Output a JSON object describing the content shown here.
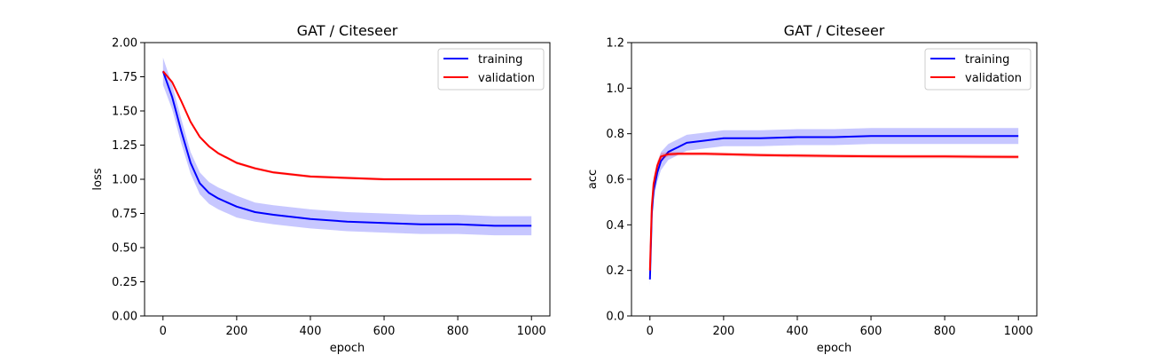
{
  "chart_data": [
    {
      "type": "line",
      "title": "GAT / Citeseer",
      "xlabel": "epoch",
      "ylabel": "loss",
      "xlim": [
        -50,
        1050
      ],
      "ylim": [
        0.0,
        2.0
      ],
      "xticks": [
        0,
        200,
        400,
        600,
        800,
        1000
      ],
      "yticks": [
        0.0,
        0.25,
        0.5,
        0.75,
        1.0,
        1.25,
        1.5,
        1.75,
        2.0
      ],
      "xtick_labels": [
        "0",
        "200",
        "400",
        "600",
        "800",
        "1000"
      ],
      "ytick_labels": [
        "0.00",
        "0.25",
        "0.50",
        "0.75",
        "1.00",
        "1.25",
        "1.50",
        "1.75",
        "2.00"
      ],
      "grid": false,
      "legend_position": "top-right",
      "series": [
        {
          "name": "training",
          "color": "#0000ff",
          "x": [
            0,
            25,
            50,
            75,
            100,
            125,
            150,
            200,
            250,
            300,
            400,
            500,
            600,
            700,
            800,
            900,
            1000
          ],
          "y": [
            1.79,
            1.6,
            1.35,
            1.12,
            0.97,
            0.9,
            0.86,
            0.8,
            0.76,
            0.74,
            0.71,
            0.69,
            0.68,
            0.67,
            0.67,
            0.66,
            0.66
          ],
          "band": [
            0.1,
            0.09,
            0.09,
            0.08,
            0.08,
            0.08,
            0.08,
            0.08,
            0.07,
            0.07,
            0.07,
            0.07,
            0.07,
            0.07,
            0.07,
            0.07,
            0.07
          ]
        },
        {
          "name": "validation",
          "color": "#ff0000",
          "x": [
            0,
            25,
            50,
            75,
            100,
            125,
            150,
            200,
            250,
            300,
            400,
            500,
            600,
            700,
            800,
            900,
            1000
          ],
          "y": [
            1.79,
            1.71,
            1.57,
            1.42,
            1.31,
            1.24,
            1.19,
            1.12,
            1.08,
            1.05,
            1.02,
            1.01,
            1.0,
            1.0,
            1.0,
            1.0,
            1.0
          ],
          "band": [
            0.01,
            0.01,
            0.01,
            0.01,
            0.01,
            0.01,
            0.01,
            0.01,
            0.01,
            0.01,
            0.01,
            0.01,
            0.01,
            0.01,
            0.01,
            0.01,
            0.01
          ]
        }
      ]
    },
    {
      "type": "line",
      "title": "GAT / Citeseer",
      "xlabel": "epoch",
      "ylabel": "acc",
      "xlim": [
        -50,
        1050
      ],
      "ylim": [
        0.0,
        1.2
      ],
      "xticks": [
        0,
        200,
        400,
        600,
        800,
        1000
      ],
      "yticks": [
        0.0,
        0.2,
        0.4,
        0.6,
        0.8,
        1.0,
        1.2
      ],
      "xtick_labels": [
        "0",
        "200",
        "400",
        "600",
        "800",
        "1000"
      ],
      "ytick_labels": [
        "0.0",
        "0.2",
        "0.4",
        "0.6",
        "0.8",
        "1.0",
        "1.2"
      ],
      "grid": false,
      "legend_position": "top-right",
      "series": [
        {
          "name": "training",
          "color": "#0000ff",
          "x": [
            0,
            5,
            10,
            20,
            30,
            50,
            75,
            100,
            150,
            200,
            300,
            400,
            500,
            600,
            700,
            800,
            900,
            1000
          ],
          "y": [
            0.16,
            0.45,
            0.55,
            0.63,
            0.68,
            0.72,
            0.74,
            0.76,
            0.77,
            0.78,
            0.78,
            0.785,
            0.785,
            0.79,
            0.79,
            0.79,
            0.79,
            0.79
          ],
          "band": [
            0.03,
            0.04,
            0.04,
            0.04,
            0.04,
            0.035,
            0.035,
            0.035,
            0.035,
            0.035,
            0.035,
            0.035,
            0.035,
            0.035,
            0.035,
            0.035,
            0.035,
            0.035
          ]
        },
        {
          "name": "validation",
          "color": "#ff0000",
          "x": [
            0,
            5,
            10,
            20,
            30,
            50,
            75,
            100,
            150,
            200,
            300,
            400,
            500,
            600,
            700,
            800,
            900,
            1000
          ],
          "y": [
            0.2,
            0.48,
            0.58,
            0.66,
            0.7,
            0.71,
            0.712,
            0.712,
            0.712,
            0.71,
            0.706,
            0.704,
            0.702,
            0.701,
            0.7,
            0.7,
            0.699,
            0.698
          ],
          "band": [
            0.03,
            0.03,
            0.03,
            0.02,
            0.015,
            0.01,
            0.008,
            0.008,
            0.008,
            0.008,
            0.008,
            0.008,
            0.008,
            0.008,
            0.008,
            0.008,
            0.008,
            0.008
          ]
        }
      ]
    }
  ]
}
